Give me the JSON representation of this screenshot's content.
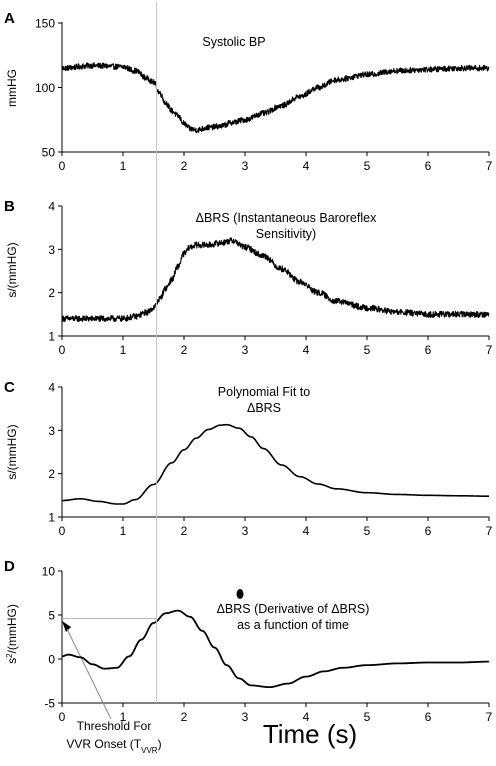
{
  "figure": {
    "xlabel": "Time (s)",
    "divider_time": 1.55,
    "threshold_annotation": {
      "line1": "Threshold For",
      "line2_prefix": "VVR Onset (T",
      "line2_sub": "VVR",
      "line2_suffix": ")",
      "threshold_value": 4.6
    }
  },
  "chart_data": [
    {
      "id": "A",
      "type": "line",
      "panel_letter": "A",
      "title_lines": [
        "Systolic BP"
      ],
      "ylabel": "mmHG",
      "xlim": [
        0,
        7
      ],
      "ylim": [
        50,
        150
      ],
      "xticks": [
        0,
        1,
        2,
        3,
        4,
        5,
        6,
        7
      ],
      "yticks": [
        50,
        100,
        150
      ],
      "noisy": true,
      "noise_amp": 2.2,
      "x": [
        0,
        0.5,
        1.0,
        1.2,
        1.4,
        1.5,
        1.6,
        1.7,
        1.8,
        1.9,
        2.0,
        2.1,
        2.2,
        2.4,
        2.6,
        2.8,
        3.0,
        3.3,
        3.6,
        3.9,
        4.2,
        4.5,
        5.0,
        5.5,
        6.0,
        6.5,
        7.0
      ],
      "y": [
        115,
        117,
        116,
        113,
        107,
        104,
        96,
        88,
        82,
        78,
        72,
        68,
        67,
        69,
        70,
        73,
        75,
        80,
        86,
        93,
        100,
        106,
        110,
        113,
        114,
        115,
        115
      ],
      "series_color": "#000000"
    },
    {
      "id": "B",
      "type": "line",
      "panel_letter": "B",
      "title_lines": [
        "ΔBRS (Instantaneous Baroreflex",
        "Sensitivity)"
      ],
      "ylabel": "s/(mmHG)",
      "xlim": [
        0,
        7
      ],
      "ylim": [
        1,
        4
      ],
      "xticks": [
        0,
        1,
        2,
        3,
        4,
        5,
        6,
        7
      ],
      "yticks": [
        1,
        2,
        3,
        4
      ],
      "noisy": true,
      "noise_amp": 0.07,
      "x": [
        0,
        0.5,
        1.0,
        1.2,
        1.4,
        1.5,
        1.6,
        1.7,
        1.8,
        1.9,
        2.0,
        2.1,
        2.2,
        2.4,
        2.6,
        2.8,
        3.0,
        3.3,
        3.6,
        3.9,
        4.2,
        4.5,
        5.0,
        5.5,
        6.0,
        6.5,
        7.0
      ],
      "y": [
        1.4,
        1.4,
        1.4,
        1.45,
        1.55,
        1.65,
        1.85,
        2.1,
        2.3,
        2.6,
        2.9,
        3.05,
        3.1,
        3.1,
        3.15,
        3.2,
        3.05,
        2.85,
        2.55,
        2.25,
        2.0,
        1.8,
        1.65,
        1.55,
        1.5,
        1.5,
        1.5
      ],
      "series_color": "#000000"
    },
    {
      "id": "C",
      "type": "line",
      "panel_letter": "C",
      "title_lines": [
        "Polynomial Fit to",
        "ΔBRS"
      ],
      "ylabel": "s/(mmHG)",
      "xlim": [
        0,
        7
      ],
      "ylim": [
        1,
        4
      ],
      "xticks": [
        0,
        1,
        2,
        3,
        4,
        5,
        6,
        7
      ],
      "yticks": [
        1,
        2,
        3,
        4
      ],
      "noisy": false,
      "x": [
        0,
        0.3,
        0.6,
        0.9,
        1.0,
        1.2,
        1.5,
        1.8,
        2.0,
        2.2,
        2.4,
        2.6,
        2.7,
        2.9,
        3.1,
        3.3,
        3.6,
        3.9,
        4.2,
        4.5,
        5.0,
        5.5,
        6.0,
        6.5,
        7.0
      ],
      "y": [
        1.38,
        1.42,
        1.36,
        1.3,
        1.3,
        1.4,
        1.75,
        2.25,
        2.55,
        2.82,
        3.02,
        3.12,
        3.13,
        3.05,
        2.85,
        2.58,
        2.2,
        1.93,
        1.76,
        1.65,
        1.56,
        1.52,
        1.5,
        1.49,
        1.48
      ],
      "series_color": "#000000"
    },
    {
      "id": "D",
      "type": "line",
      "panel_letter": "D",
      "title_lines": [
        "ΔBRS (Derivative of ΔBRS)",
        "as a function of time"
      ],
      "ylabel_base": "s",
      "ylabel_sup": "2",
      "ylabel_rest": "/(mmHG)",
      "xlim": [
        0,
        7
      ],
      "ylim": [
        -5,
        10
      ],
      "xticks": [
        0,
        1,
        2,
        3,
        4,
        5,
        6,
        7
      ],
      "yticks": [
        -5,
        0,
        5,
        10
      ],
      "noisy": false,
      "x": [
        0,
        0.1,
        0.3,
        0.5,
        0.7,
        0.9,
        1.1,
        1.3,
        1.5,
        1.7,
        1.9,
        2.1,
        2.3,
        2.5,
        2.7,
        2.9,
        3.1,
        3.4,
        3.7,
        4.0,
        4.3,
        4.6,
        5.0,
        5.5,
        6.0,
        6.5,
        7.0
      ],
      "y": [
        0.3,
        0.5,
        0.2,
        -0.6,
        -1.1,
        -1.0,
        0.3,
        2.2,
        4.1,
        5.2,
        5.5,
        4.8,
        3.2,
        1.3,
        -0.7,
        -2.2,
        -3.0,
        -3.2,
        -2.8,
        -2.0,
        -1.4,
        -1.0,
        -0.7,
        -0.5,
        -0.4,
        -0.4,
        -0.3
      ],
      "series_color": "#000000"
    }
  ]
}
